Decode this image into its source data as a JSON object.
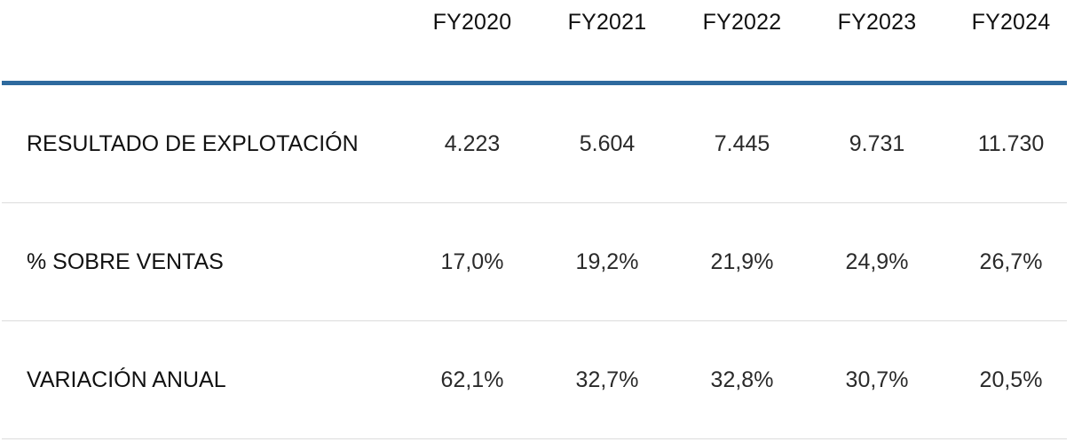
{
  "header": {
    "years": [
      "FY2020",
      "FY2021",
      "FY2022",
      "FY2023",
      "FY2024"
    ]
  },
  "rows": [
    {
      "label": "RESULTADO DE EXPLOTACIÓN",
      "values": [
        "4.223",
        "5.604",
        "7.445",
        "9.731",
        "11.730"
      ]
    },
    {
      "label": "% SOBRE VENTAS",
      "values": [
        "17,0%",
        "19,2%",
        "21,9%",
        "24,9%",
        "26,7%"
      ]
    },
    {
      "label": "VARIACIÓN ANUAL",
      "values": [
        "62,1%",
        "32,7%",
        "32,8%",
        "30,7%",
        "20,5%"
      ]
    }
  ],
  "colors": {
    "header_rule": "#2e6a9e",
    "row_divider": "#dcdcdc"
  }
}
